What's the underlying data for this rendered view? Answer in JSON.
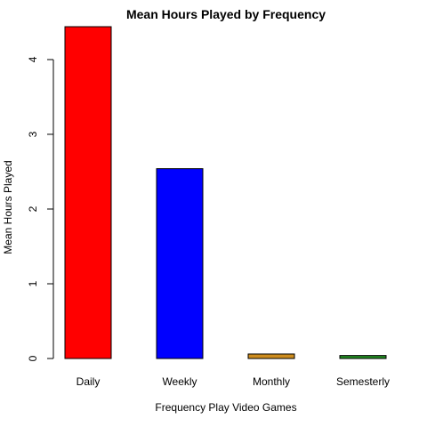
{
  "chart_data": {
    "type": "bar",
    "title": "Mean Hours Played by Frequency",
    "xlabel": "Frequency Play Video Games",
    "ylabel": "Mean Hours Played",
    "categories": [
      "Daily",
      "Weekly",
      "Monthly",
      "Semesterly"
    ],
    "values": [
      4.44,
      2.54,
      0.06,
      0.04
    ],
    "colors": [
      "#ff0000",
      "#0000ff",
      "#cd8c1e",
      "#228b22"
    ],
    "yticks": [
      "0",
      "1",
      "2",
      "3",
      "4"
    ],
    "ylim": [
      0,
      4.44
    ],
    "grid": false,
    "legend": "none"
  }
}
